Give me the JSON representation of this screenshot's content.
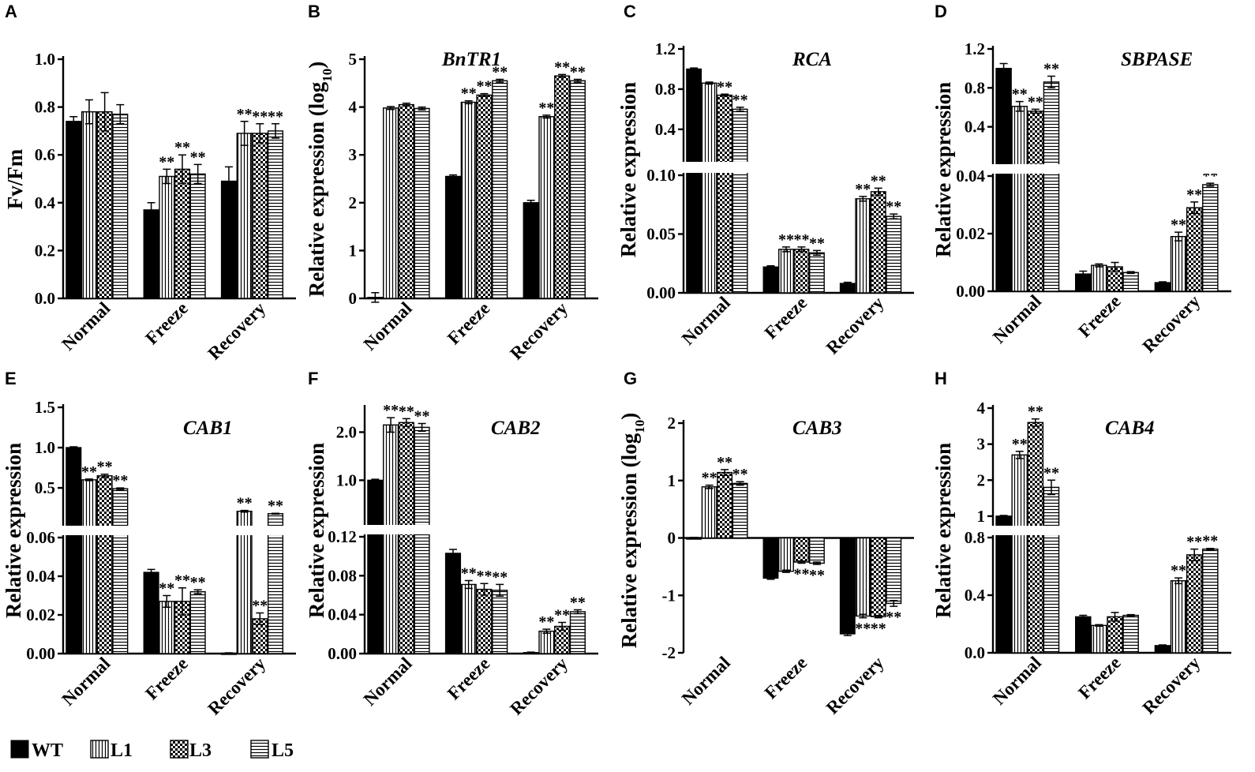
{
  "series_names": [
    "WT",
    "L1",
    "L3",
    "L5"
  ],
  "legend": [
    {
      "name": "WT"
    },
    {
      "name": "L1"
    },
    {
      "name": "L3"
    },
    {
      "name": "L5"
    }
  ],
  "sig_mark": "**",
  "chart_data": [
    {
      "panel": "A",
      "type": "bar",
      "title": "",
      "ylabel": "Fv/Fm",
      "categories": [
        "Normal",
        "Freeze",
        "Recovery"
      ],
      "ylim": [
        0,
        1.0
      ],
      "yticks": [
        "0.0",
        "0.2",
        "0.4",
        "0.6",
        "0.8",
        "1.0"
      ],
      "series": [
        {
          "name": "WT",
          "values": [
            0.74,
            0.37,
            0.49
          ],
          "errors": [
            0.02,
            0.03,
            0.06
          ]
        },
        {
          "name": "L1",
          "values": [
            0.78,
            0.51,
            0.69
          ],
          "errors": [
            0.05,
            0.03,
            0.05
          ]
        },
        {
          "name": "L3",
          "values": [
            0.78,
            0.54,
            0.69
          ],
          "errors": [
            0.08,
            0.06,
            0.04
          ]
        },
        {
          "name": "L5",
          "values": [
            0.77,
            0.52,
            0.7
          ],
          "errors": [
            0.04,
            0.04,
            0.03
          ]
        }
      ],
      "significance": [
        [
          0,
          0,
          0,
          0
        ],
        [
          0,
          1,
          1,
          1
        ],
        [
          0,
          1,
          1,
          1
        ]
      ]
    },
    {
      "panel": "B",
      "type": "bar",
      "title": "BnTR1",
      "ylabel": "Relative expression (log10)",
      "categories": [
        "Normal",
        "Freeze",
        "Recovery"
      ],
      "ylim": [
        0,
        5
      ],
      "yticks": [
        "0",
        "1",
        "2",
        "3",
        "4",
        "5"
      ],
      "series": [
        {
          "name": "WT",
          "values": [
            0.02,
            2.55,
            2.0
          ],
          "errors": [
            0.1,
            0.03,
            0.05
          ]
        },
        {
          "name": "L1",
          "values": [
            3.98,
            4.1,
            3.8
          ],
          "errors": [
            0.03,
            0.03,
            0.03
          ]
        },
        {
          "name": "L3",
          "values": [
            4.05,
            4.25,
            4.65
          ],
          "errors": [
            0.03,
            0.03,
            0.03
          ]
        },
        {
          "name": "L5",
          "values": [
            3.97,
            4.55,
            4.55
          ],
          "errors": [
            0.03,
            0.03,
            0.03
          ]
        }
      ],
      "significance": [
        [
          0,
          0,
          0,
          0
        ],
        [
          0,
          1,
          1,
          1
        ],
        [
          0,
          1,
          1,
          1
        ]
      ]
    },
    {
      "panel": "C",
      "type": "bar",
      "title": "RCA",
      "ylabel": "Relative expression",
      "categories": [
        "Normal",
        "Freeze",
        "Recovery"
      ],
      "broken_axis": {
        "lower": [
          0,
          0.1
        ],
        "upper": [
          0.1,
          1.2
        ]
      },
      "yticks_lower": [
        "0.00",
        "0.05",
        "0.10"
      ],
      "yticks_upper": [
        "0.4",
        "0.8",
        "1.2"
      ],
      "series": [
        {
          "name": "WT",
          "values": [
            1.0,
            0.022,
            0.008
          ],
          "errors": [
            0.01,
            0.001,
            0.001
          ]
        },
        {
          "name": "L1",
          "values": [
            0.86,
            0.037,
            0.08
          ],
          "errors": [
            0.01,
            0.002,
            0.002
          ]
        },
        {
          "name": "L3",
          "values": [
            0.74,
            0.037,
            0.086
          ],
          "errors": [
            0.01,
            0.002,
            0.003
          ]
        },
        {
          "name": "L5",
          "values": [
            0.6,
            0.034,
            0.065
          ],
          "errors": [
            0.02,
            0.002,
            0.002
          ]
        }
      ],
      "significance": [
        [
          0,
          0,
          1,
          1
        ],
        [
          0,
          1,
          1,
          1
        ],
        [
          0,
          1,
          1,
          1
        ]
      ]
    },
    {
      "panel": "D",
      "type": "bar",
      "title": "SBPASE",
      "ylabel": "Relative expression",
      "categories": [
        "Normal",
        "Freeze",
        "Recovery"
      ],
      "broken_axis": {
        "lower": [
          0,
          0.04
        ],
        "upper": [
          0.04,
          1.2
        ]
      },
      "yticks_lower": [
        "0.00",
        "0.02",
        "0.04"
      ],
      "yticks_upper": [
        "0.4",
        "0.8",
        "1.2"
      ],
      "series": [
        {
          "name": "WT",
          "values": [
            1.0,
            0.006,
            0.003
          ],
          "errors": [
            0.05,
            0.001,
            0.0003
          ]
        },
        {
          "name": "L1",
          "values": [
            0.61,
            0.009,
            0.019
          ],
          "errors": [
            0.05,
            0.0005,
            0.0015
          ]
        },
        {
          "name": "L3",
          "values": [
            0.56,
            0.0085,
            0.029
          ],
          "errors": [
            0.02,
            0.0015,
            0.002
          ]
        },
        {
          "name": "L5",
          "values": [
            0.86,
            0.0065,
            0.037
          ],
          "errors": [
            0.06,
            0.0003,
            0.0005
          ]
        }
      ],
      "significance": [
        [
          0,
          1,
          1,
          1
        ],
        [
          0,
          0,
          0,
          0
        ],
        [
          0,
          1,
          1,
          1
        ]
      ]
    },
    {
      "panel": "E",
      "type": "bar",
      "title": "CAB1",
      "ylabel": "Relative expression",
      "categories": [
        "Normal",
        "Freeze",
        "Recovery"
      ],
      "broken_axis": {
        "lower": [
          0,
          0.06
        ],
        "upper": [
          0.06,
          1.5
        ]
      },
      "yticks_lower": [
        "0.00",
        "0.02",
        "0.04",
        "0.06"
      ],
      "yticks_upper": [
        "0.5",
        "1.0",
        "1.5"
      ],
      "series": [
        {
          "name": "WT",
          "values": [
            1.0,
            0.042,
            0.0002
          ],
          "errors": [
            0.01,
            0.0015,
            0.0002
          ]
        },
        {
          "name": "L1",
          "values": [
            0.6,
            0.027,
            0.21
          ],
          "errors": [
            0.01,
            0.003,
            0.01
          ]
        },
        {
          "name": "L3",
          "values": [
            0.65,
            0.027,
            0.018
          ],
          "errors": [
            0.02,
            0.007,
            0.003
          ]
        },
        {
          "name": "L5",
          "values": [
            0.49,
            0.032,
            0.18
          ],
          "errors": [
            0.01,
            0.001,
            0.005
          ]
        }
      ],
      "significance": [
        [
          0,
          1,
          1,
          1
        ],
        [
          0,
          1,
          1,
          1
        ],
        [
          0,
          1,
          1,
          1
        ]
      ]
    },
    {
      "panel": "F",
      "type": "bar",
      "title": "CAB2",
      "ylabel": "Relative expression",
      "categories": [
        "Normal",
        "Freeze",
        "Recovery"
      ],
      "broken_axis": {
        "lower": [
          0,
          0.12
        ],
        "upper": [
          0.12,
          2.5
        ]
      },
      "yticks_lower": [
        "0.00",
        "0.04",
        "0.08",
        "0.12"
      ],
      "yticks_upper": [
        "1.0",
        "2.0"
      ],
      "series": [
        {
          "name": "WT",
          "values": [
            1.0,
            0.103,
            0.001
          ],
          "errors": [
            0.02,
            0.004,
            0.0005
          ]
        },
        {
          "name": "L1",
          "values": [
            2.15,
            0.071,
            0.023
          ],
          "errors": [
            0.15,
            0.004,
            0.002
          ]
        },
        {
          "name": "L3",
          "values": [
            2.2,
            0.066,
            0.028
          ],
          "errors": [
            0.08,
            0.006,
            0.004
          ]
        },
        {
          "name": "L5",
          "values": [
            2.1,
            0.065,
            0.043
          ],
          "errors": [
            0.08,
            0.006,
            0.002
          ]
        }
      ],
      "significance": [
        [
          0,
          1,
          1,
          1
        ],
        [
          0,
          1,
          1,
          1
        ],
        [
          0,
          1,
          1,
          1
        ]
      ]
    },
    {
      "panel": "G",
      "type": "bar",
      "title": "CAB3",
      "ylabel": "Relative expression (log10)",
      "categories": [
        "Normal",
        "Freeze",
        "Recovery"
      ],
      "ylim": [
        -2,
        2
      ],
      "yticks": [
        "-2",
        "-1",
        "0",
        "1",
        "2"
      ],
      "series": [
        {
          "name": "WT",
          "values": [
            0.0,
            -0.7,
            -1.67
          ],
          "errors": [
            0.01,
            0.02,
            0.03
          ]
        },
        {
          "name": "L1",
          "values": [
            0.89,
            -0.58,
            -1.36
          ],
          "errors": [
            0.03,
            0.02,
            0.03
          ]
        },
        {
          "name": "L3",
          "values": [
            1.14,
            -0.42,
            -1.37
          ],
          "errors": [
            0.05,
            0.02,
            0.02
          ]
        },
        {
          "name": "L5",
          "values": [
            0.95,
            -0.44,
            -1.14
          ],
          "errors": [
            0.03,
            0.02,
            0.05
          ]
        }
      ],
      "significance": [
        [
          0,
          1,
          1,
          1
        ],
        [
          0,
          0,
          1,
          1
        ],
        [
          0,
          1,
          1,
          1
        ]
      ]
    },
    {
      "panel": "H",
      "type": "bar",
      "title": "CAB4",
      "ylabel": "Relative expression",
      "categories": [
        "Normal",
        "Freeze",
        "Recovery"
      ],
      "broken_axis": {
        "lower": [
          0,
          0.8
        ],
        "upper": [
          0.8,
          4
        ]
      },
      "yticks_lower": [
        "0.0",
        "0.4",
        "0.8"
      ],
      "yticks_upper": [
        "1",
        "2",
        "3",
        "4"
      ],
      "series": [
        {
          "name": "WT",
          "values": [
            1.0,
            0.25,
            0.05
          ],
          "errors": [
            0.02,
            0.01,
            0.005
          ]
        },
        {
          "name": "L1",
          "values": [
            2.7,
            0.19,
            0.5
          ],
          "errors": [
            0.1,
            0.005,
            0.02
          ]
        },
        {
          "name": "L3",
          "values": [
            3.6,
            0.25,
            0.68
          ],
          "errors": [
            0.1,
            0.03,
            0.04
          ]
        },
        {
          "name": "L5",
          "values": [
            1.8,
            0.26,
            0.72
          ],
          "errors": [
            0.2,
            0.005,
            0.005
          ]
        }
      ],
      "significance": [
        [
          0,
          1,
          1,
          1
        ],
        [
          0,
          0,
          0,
          0
        ],
        [
          0,
          1,
          1,
          1
        ]
      ]
    }
  ]
}
